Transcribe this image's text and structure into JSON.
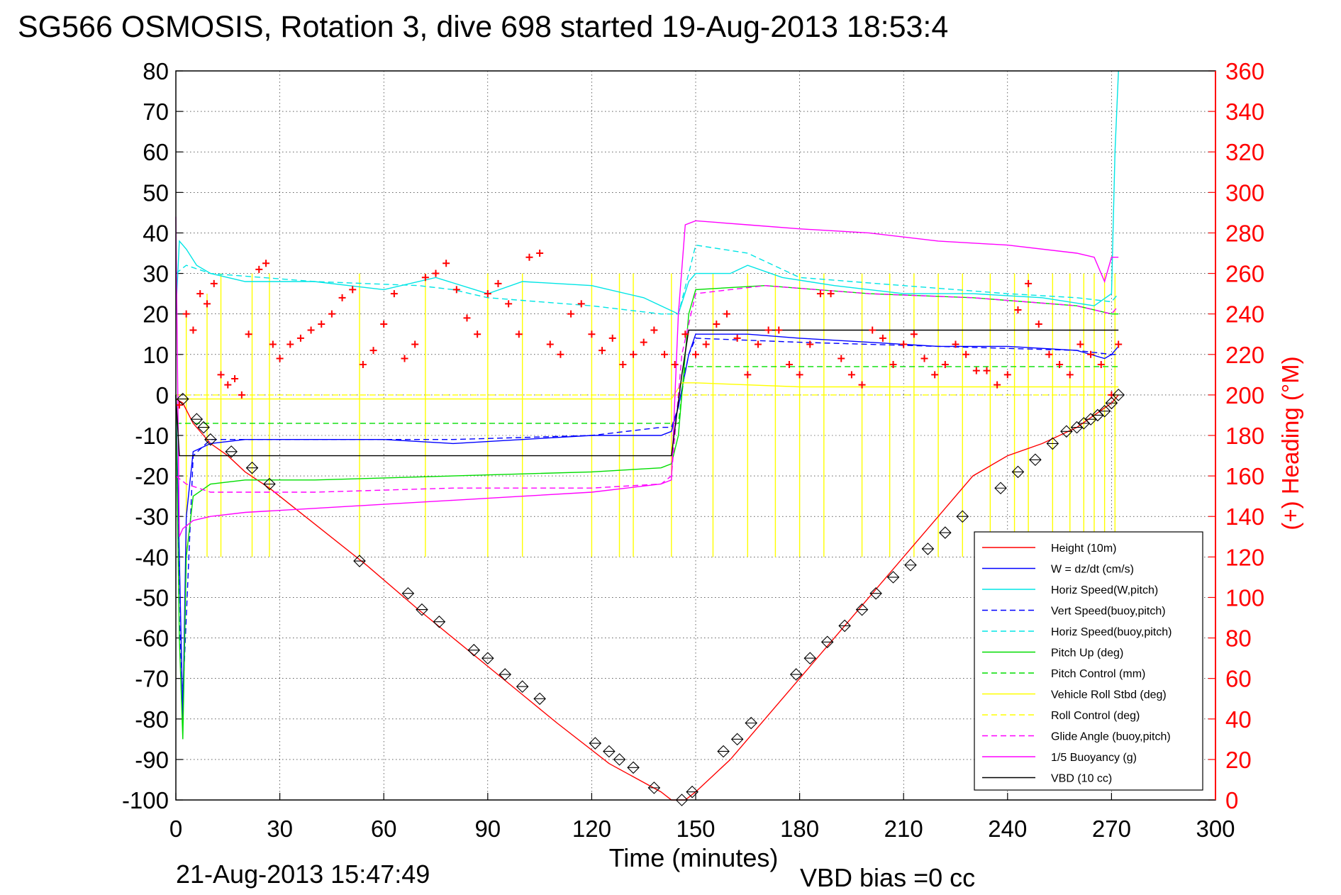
{
  "chart_data": {
    "type": "line",
    "title": "SG566 OSMOSIS, Rotation 3, dive 698 started 19-Aug-2013 18:53:4",
    "xlabel": "Time (minutes)",
    "ylabel": "",
    "y2label": "(+) Heading (°M)",
    "xlim": [
      0,
      300
    ],
    "ylim": [
      -100,
      80
    ],
    "y2lim": [
      0,
      360
    ],
    "xticks": [
      "0",
      "30",
      "60",
      "90",
      "120",
      "150",
      "180",
      "210",
      "240",
      "270",
      "300"
    ],
    "yticks": [
      "80",
      "70",
      "60",
      "50",
      "40",
      "30",
      "20",
      "10",
      "0",
      "-10",
      "-20",
      "-30",
      "-40",
      "-50",
      "-60",
      "-70",
      "-80",
      "-90",
      "-100"
    ],
    "y2ticks": [
      "360",
      "340",
      "320",
      "300",
      "280",
      "260",
      "240",
      "220",
      "200",
      "180",
      "160",
      "140",
      "120",
      "100",
      "80",
      "60",
      "40",
      "20",
      "0"
    ],
    "grid": true,
    "legend_position": "bottom-right",
    "footer_left": "21-Aug-2013 15:47:49",
    "footer_right": "VBD bias =0 cc",
    "colors": {
      "red": "#ff0000",
      "blue": "#0000ff",
      "cyan": "#00e5e5",
      "green": "#00dd00",
      "yellow": "#ffff00",
      "magenta": "#ff00ff",
      "black": "#000000"
    },
    "legend": [
      {
        "label": "Height (10m)",
        "color": "#ff0000",
        "dash": false
      },
      {
        "label": "W = dz/dt (cm/s)",
        "color": "#0000ff",
        "dash": false
      },
      {
        "label": "Horiz Speed(W,pitch)",
        "color": "#00e5e5",
        "dash": false
      },
      {
        "label": "Vert Speed(buoy,pitch)",
        "color": "#0000ff",
        "dash": true
      },
      {
        "label": "Horiz Speed(buoy,pitch)",
        "color": "#00e5e5",
        "dash": true
      },
      {
        "label": "Pitch Up (deg)",
        "color": "#00dd00",
        "dash": false
      },
      {
        "label": "Pitch Control (mm)",
        "color": "#00dd00",
        "dash": true
      },
      {
        "label": "Vehicle Roll Stbd (deg)",
        "color": "#ffff00",
        "dash": false
      },
      {
        "label": "Roll Control (deg)",
        "color": "#ffff00",
        "dash": true
      },
      {
        "label": "Glide Angle (buoy,pitch)",
        "color": "#ff00ff",
        "dash": true
      },
      {
        "label": "1/5 Buoyancy (g)",
        "color": "#ff00ff",
        "dash": false
      },
      {
        "label": "VBD (10 cc)",
        "color": "#000000",
        "dash": false
      }
    ],
    "series": [
      {
        "name": "Height (10m)",
        "color": "#ff0000",
        "dash": false,
        "x": [
          0,
          2,
          5,
          10,
          15,
          20,
          27,
          55,
          70,
          80,
          90,
          100,
          110,
          125,
          140,
          143,
          145,
          147,
          150,
          160,
          170,
          180,
          190,
          200,
          210,
          220,
          230,
          240,
          250,
          260,
          265,
          270,
          272
        ],
        "y": [
          -1,
          -2,
          -7,
          -12,
          -15,
          -19,
          -23,
          -42,
          -53,
          -60,
          -67,
          -74,
          -81,
          -91,
          -98,
          -100,
          -100,
          -100,
          -98,
          -90,
          -80,
          -70,
          -60,
          -50,
          -40,
          -30,
          -20,
          -15,
          -12,
          -8,
          -5,
          -2,
          0
        ]
      },
      {
        "name": "W = dz/dt (cm/s)",
        "color": "#0000ff",
        "dash": false,
        "x": [
          0,
          1,
          2,
          3,
          5,
          10,
          20,
          40,
          60,
          80,
          100,
          120,
          140,
          143,
          145,
          148,
          150,
          165,
          180,
          200,
          220,
          240,
          260,
          268,
          270,
          272
        ],
        "y": [
          0,
          -40,
          -80,
          -30,
          -14,
          -12,
          -11,
          -11,
          -11,
          -12,
          -11,
          -10,
          -10,
          -9,
          -3,
          10,
          15,
          15,
          14,
          13,
          12,
          12,
          11,
          9,
          10,
          12
        ]
      },
      {
        "name": "Horiz Speed(W,pitch)",
        "color": "#00e5e5",
        "dash": false,
        "x": [
          0,
          1,
          3,
          6,
          10,
          20,
          40,
          60,
          75,
          90,
          100,
          120,
          135,
          140,
          145,
          148,
          150,
          160,
          165,
          175,
          190,
          210,
          230,
          250,
          265,
          270,
          271,
          272
        ],
        "y": [
          20,
          38,
          36,
          32,
          30,
          28,
          28,
          26,
          29,
          25,
          28,
          27,
          24,
          22,
          20,
          28,
          30,
          30,
          32,
          29,
          27,
          25,
          25,
          24,
          22,
          25,
          60,
          80
        ]
      },
      {
        "name": "Vert Speed(buoy,pitch)",
        "color": "#0000ff",
        "dash": true,
        "x": [
          0,
          1,
          2,
          5,
          10,
          40,
          80,
          120,
          140,
          143,
          145,
          148,
          150,
          180,
          220,
          260,
          270,
          272
        ],
        "y": [
          0,
          -55,
          -75,
          -15,
          -11,
          -11,
          -11,
          -10,
          -8,
          -8,
          -3,
          10,
          14,
          13,
          12,
          11,
          10,
          10
        ]
      },
      {
        "name": "Horiz Speed(buoy,pitch)",
        "color": "#00e5e5",
        "dash": true,
        "x": [
          0,
          3,
          10,
          40,
          70,
          80,
          90,
          120,
          140,
          145,
          148,
          150,
          165,
          180,
          210,
          240,
          260,
          270,
          272
        ],
        "y": [
          30,
          32,
          30,
          28,
          27,
          26,
          24,
          22,
          20,
          20,
          30,
          37,
          35,
          29,
          27,
          25,
          24,
          23,
          25
        ]
      },
      {
        "name": "Pitch Up (deg)",
        "color": "#00dd00",
        "dash": false,
        "x": [
          0,
          1,
          2,
          3,
          5,
          10,
          20,
          40,
          80,
          120,
          140,
          143,
          145,
          148,
          150,
          170,
          200,
          230,
          260,
          270,
          272
        ],
        "y": [
          0,
          -60,
          -85,
          -40,
          -25,
          -22,
          -21,
          -21,
          -20,
          -19,
          -18,
          -17,
          -10,
          20,
          26,
          27,
          25,
          24,
          22,
          20,
          20
        ]
      },
      {
        "name": "Pitch Control (mm)",
        "color": "#00dd00",
        "dash": true,
        "x": [
          0,
          2,
          145,
          147,
          272
        ],
        "y": [
          -7,
          -7,
          -7,
          7,
          7
        ]
      },
      {
        "name": "Vehicle Roll Stbd (deg)",
        "color": "#ffff00",
        "dash": false,
        "x": [
          0,
          3,
          30,
          60,
          90,
          120,
          143,
          146,
          150,
          180,
          210,
          240,
          270,
          272
        ],
        "y": [
          -1,
          -1,
          -1,
          -1,
          -1,
          -1,
          -1,
          3,
          3,
          2,
          2,
          2,
          2,
          2
        ]
      },
      {
        "name": "Roll Control (deg)",
        "color": "#ffff00",
        "dash": true,
        "x": [
          0,
          145,
          147,
          272
        ],
        "y": [
          0,
          0,
          0,
          0
        ]
      },
      {
        "name": "Glide Angle (buoy,pitch)",
        "color": "#ff00ff",
        "dash": true,
        "x": [
          0,
          3,
          10,
          40,
          80,
          120,
          140,
          143,
          146,
          150,
          170,
          200,
          230,
          260,
          270,
          272
        ],
        "y": [
          -20,
          -22,
          -24,
          -24,
          -23,
          -23,
          -22,
          -20,
          10,
          25,
          27,
          25,
          24,
          22,
          20,
          22
        ]
      },
      {
        "name": "1/5 Buoyancy (g)",
        "color": "#ff00ff",
        "dash": false,
        "x": [
          0,
          1,
          2,
          5,
          10,
          20,
          40,
          60,
          80,
          100,
          120,
          140,
          143,
          145,
          147,
          150,
          165,
          180,
          200,
          220,
          240,
          260,
          265,
          268,
          270,
          272
        ],
        "y": [
          44,
          -35,
          -33,
          -31,
          -30,
          -29,
          -28,
          -27,
          -26,
          -25,
          -24,
          -22,
          -21,
          20,
          42,
          43,
          42,
          41,
          40,
          38,
          37,
          35,
          34,
          28,
          34,
          34
        ]
      },
      {
        "name": "VBD (10 cc)",
        "color": "#000000",
        "dash": false,
        "x": [
          0,
          1,
          3,
          143,
          146,
          148,
          272
        ],
        "y": [
          0,
          -15,
          -15,
          -15,
          5,
          16,
          16
        ]
      }
    ],
    "heading_series": {
      "name": "(+) Heading",
      "color": "#ff0000",
      "marker": "+",
      "x": [
        1,
        3,
        5,
        7,
        9,
        11,
        13,
        15,
        17,
        19,
        21,
        24,
        26,
        28,
        30,
        33,
        36,
        39,
        42,
        45,
        48,
        51,
        54,
        57,
        60,
        63,
        66,
        69,
        72,
        75,
        78,
        81,
        84,
        87,
        90,
        93,
        96,
        99,
        102,
        105,
        108,
        111,
        114,
        117,
        120,
        123,
        126,
        129,
        132,
        135,
        138,
        141,
        144,
        147,
        150,
        153,
        156,
        159,
        162,
        165,
        168,
        171,
        174,
        177,
        180,
        183,
        186,
        189,
        192,
        195,
        198,
        201,
        204,
        207,
        210,
        213,
        216,
        219,
        222,
        225,
        228,
        231,
        234,
        237,
        240,
        243,
        246,
        249,
        252,
        255,
        258,
        261,
        264,
        267,
        270,
        272
      ],
      "y": [
        195,
        240,
        232,
        250,
        245,
        255,
        210,
        205,
        208,
        200,
        230,
        262,
        265,
        225,
        218,
        225,
        228,
        232,
        235,
        240,
        248,
        252,
        215,
        222,
        235,
        250,
        218,
        225,
        258,
        260,
        265,
        252,
        238,
        230,
        250,
        255,
        245,
        230,
        268,
        270,
        225,
        220,
        240,
        245,
        230,
        222,
        228,
        215,
        220,
        226,
        232,
        220,
        215,
        230,
        220,
        225,
        235,
        240,
        228,
        210,
        225,
        232,
        232,
        215,
        210,
        225,
        250,
        250,
        218,
        210,
        205,
        232,
        228,
        215,
        225,
        230,
        218,
        210,
        215,
        225,
        220,
        212,
        212,
        205,
        210,
        242,
        255,
        235,
        220,
        215,
        210,
        225,
        220,
        215,
        200,
        225
      ]
    },
    "diamond_markers": {
      "x": [
        2,
        6,
        8,
        10,
        16,
        22,
        27,
        53,
        67,
        71,
        76,
        86,
        90,
        95,
        100,
        105,
        121,
        125,
        128,
        132,
        138,
        146,
        149,
        158,
        162,
        166,
        179,
        183,
        188,
        193,
        198,
        202,
        207,
        212,
        217,
        222,
        227,
        238,
        243,
        248,
        253,
        257,
        260,
        262,
        264,
        266,
        268,
        270,
        272
      ],
      "y": [
        -1,
        -6,
        -8,
        -11,
        -14,
        -18,
        -22,
        -41,
        -49,
        -53,
        -56,
        -63,
        -65,
        -69,
        -72,
        -75,
        -86,
        -88,
        -90,
        -92,
        -97,
        -100,
        -98,
        -88,
        -85,
        -81,
        -69,
        -65,
        -61,
        -57,
        -53,
        -49,
        -45,
        -42,
        -38,
        -34,
        -30,
        -23,
        -19,
        -16,
        -12,
        -9,
        -8,
        -7,
        -6,
        -5,
        -4,
        -2,
        0
      ]
    },
    "roll_spikes": {
      "x": [
        3,
        9,
        13,
        22,
        27,
        53,
        72,
        90,
        100,
        120,
        128,
        132,
        143,
        155,
        165,
        173,
        180,
        187,
        198,
        206,
        213,
        220,
        227,
        235,
        242,
        246,
        253,
        258,
        262,
        265,
        268,
        271
      ],
      "y": [
        -40,
        -40,
        -40,
        -40,
        -40,
        -40,
        -40,
        -40,
        -40,
        -40,
        -40,
        -40,
        -40,
        -40,
        -40,
        -40,
        -40,
        -40,
        -40,
        -40,
        -40,
        -40,
        -40,
        -40,
        -40,
        -40,
        -40,
        -40,
        -40,
        -40,
        -40,
        -40
      ],
      "top": [
        20,
        25,
        30,
        30,
        30,
        30,
        30,
        30,
        30,
        30,
        30,
        30,
        30,
        30,
        30,
        30,
        30,
        30,
        30,
        30,
        30,
        30,
        30,
        30,
        30,
        30,
        30,
        30,
        30,
        30,
        30,
        30
      ]
    }
  }
}
